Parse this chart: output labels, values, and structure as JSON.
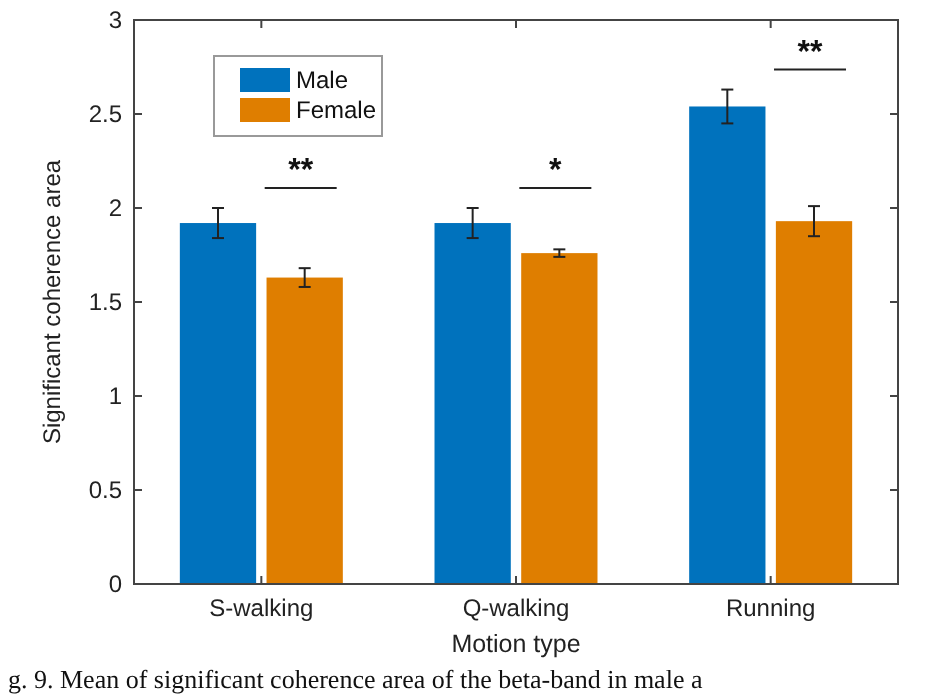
{
  "chart_data": {
    "type": "bar",
    "xlabel": "Motion type",
    "ylabel": "Significant coherence area",
    "categories": [
      "S-walking",
      "Q-walking",
      "Running"
    ],
    "series": [
      {
        "name": "Male",
        "color": "#0072bd",
        "values": [
          1.92,
          1.92,
          2.54
        ],
        "errors": [
          0.08,
          0.08,
          0.09
        ]
      },
      {
        "name": "Female",
        "color": "#df7e00",
        "values": [
          1.63,
          1.76,
          1.93
        ],
        "errors": [
          0.05,
          0.02,
          0.08
        ]
      }
    ],
    "ylim": [
      0,
      3
    ],
    "yticks": [
      0,
      0.5,
      1,
      1.5,
      2,
      2.5,
      3
    ],
    "legend": "top left",
    "annotations": [
      "**",
      "*",
      "**",
      "g. 9.   Mean of significant coherence area of the beta-band in male a"
    ]
  }
}
